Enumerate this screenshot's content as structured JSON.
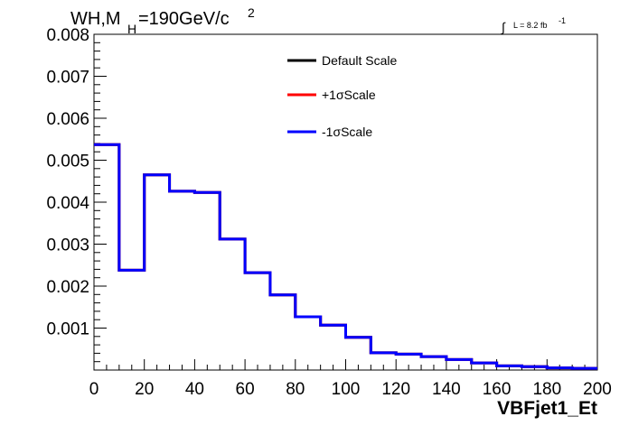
{
  "chart_data": {
    "type": "line",
    "title_main": "WH,M",
    "title_sub": "H",
    "title_rest": "=190GeV/c",
    "title_sup": "2",
    "lumi_integral": "∫",
    "lumi_text": "L = 8.2 fb",
    "lumi_sup": "-1",
    "xlabel": "VBFjet1_Et",
    "ylabel": "",
    "xlim": [
      0,
      200
    ],
    "ylim": [
      0,
      0.008
    ],
    "x_ticks": [
      "0",
      "20",
      "40",
      "60",
      "80",
      "100",
      "120",
      "140",
      "160",
      "180",
      "200"
    ],
    "y_ticks": [
      "0.001",
      "0.002",
      "0.003",
      "0.004",
      "0.005",
      "0.006",
      "0.007",
      "0.008"
    ],
    "bin_edges": [
      0,
      10,
      20,
      30,
      40,
      50,
      60,
      70,
      80,
      90,
      100,
      110,
      120,
      130,
      140,
      150,
      160,
      170,
      180,
      190,
      200
    ],
    "legend_position": "top-center",
    "series": [
      {
        "name": "Default Scale",
        "color": "#000000",
        "values": [
          0.00537,
          0.00238,
          0.00465,
          0.00426,
          0.00423,
          0.00312,
          0.00232,
          0.00179,
          0.00127,
          0.00107,
          0.00078,
          0.00041,
          0.00038,
          0.00032,
          0.00025,
          0.00017,
          0.0001,
          8e-05,
          5e-05,
          4e-05
        ]
      },
      {
        "name": "+1σScale",
        "color": "#ff0000",
        "values": [
          0.00537,
          0.00238,
          0.00465,
          0.00426,
          0.00423,
          0.00312,
          0.00232,
          0.00179,
          0.00127,
          0.00107,
          0.00078,
          0.00041,
          0.00038,
          0.00032,
          0.00025,
          0.00017,
          0.0001,
          8e-05,
          5e-05,
          4e-05
        ]
      },
      {
        "name": "-1σScale",
        "color": "#0000ff",
        "values": [
          0.00537,
          0.00238,
          0.00465,
          0.00426,
          0.00423,
          0.00312,
          0.00232,
          0.00179,
          0.00127,
          0.00107,
          0.00078,
          0.00041,
          0.00038,
          0.00032,
          0.00025,
          0.00017,
          0.0001,
          8e-05,
          5e-05,
          4e-05
        ]
      }
    ]
  }
}
